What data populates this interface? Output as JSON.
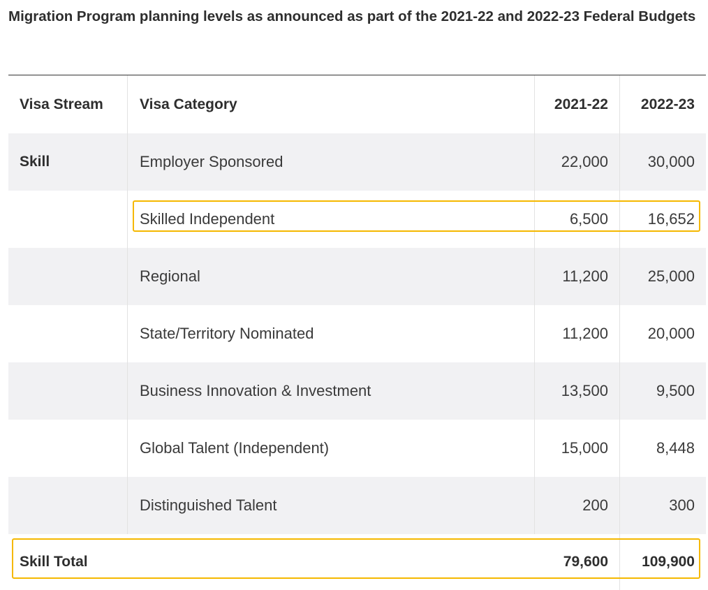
{
  "title": "Migration Program planning levels as announced as part of the 2021-22 and 2022-23 Federal Budgets",
  "headers": [
    "Visa Stream",
    "Visa Category",
    "2021-22",
    "2022-23"
  ],
  "rows": [
    {
      "stream": "Skill",
      "category": "Employer Sponsored",
      "y2122": "22,000",
      "y2223": "30,000"
    },
    {
      "stream": "",
      "category": "Skilled Independent",
      "y2122": "6,500",
      "y2223": "16,652",
      "highlighted": true
    },
    {
      "stream": "",
      "category": "Regional",
      "y2122": "11,200",
      "y2223": "25,000"
    },
    {
      "stream": "",
      "category": "State/Territory Nominated",
      "y2122": "11,200",
      "y2223": "20,000"
    },
    {
      "stream": "",
      "category": "Business Innovation & Investment",
      "y2122": "13,500",
      "y2223": "9,500"
    },
    {
      "stream": "",
      "category": "Global Talent (Independent)",
      "y2122": "15,000",
      "y2223": "8,448"
    },
    {
      "stream": "",
      "category": "Distinguished Talent",
      "y2122": "200",
      "y2223": "300"
    }
  ],
  "total": {
    "label": "Skill Total",
    "y2122": "79,600",
    "y2223": "109,900",
    "highlighted": true
  },
  "highlight_color": "#f5b800"
}
